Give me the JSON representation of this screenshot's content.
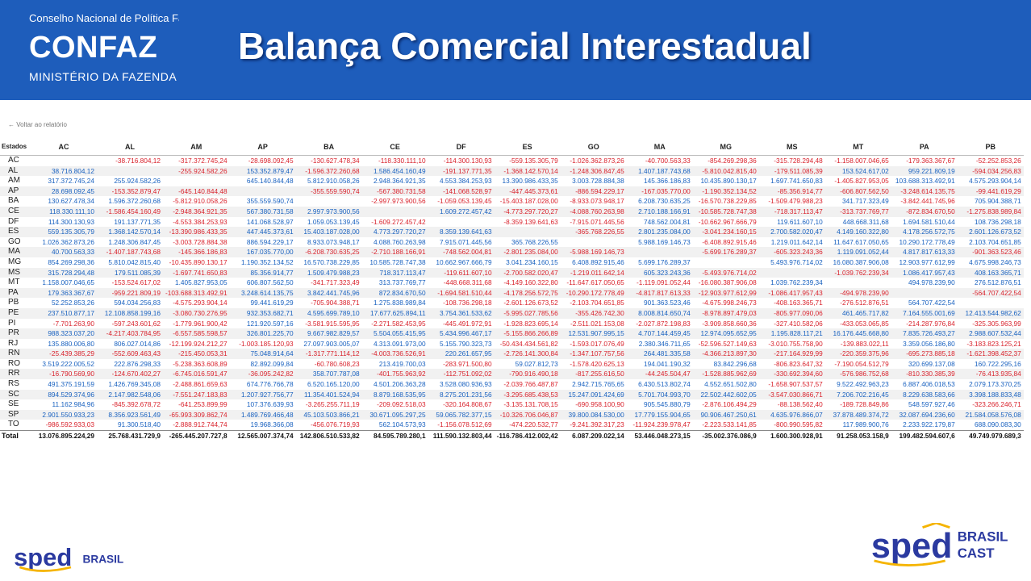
{
  "header": {
    "org_name": "Conselho Nacional de Política Fazendária",
    "logo_text": "CONFAZ",
    "ministry": "MINISTÉRIO DA FAZENDA",
    "title": "Balança Comercial Interestadual"
  },
  "back_link": "Voltar ao relatório",
  "table": {
    "corner_label": "Estados",
    "columns": [
      "AC",
      "AL",
      "AM",
      "AP",
      "BA",
      "CE",
      "DF",
      "ES",
      "GO",
      "MA",
      "MG",
      "MS",
      "MT",
      "PA",
      "PB"
    ],
    "rows": [
      {
        "state": "AC",
        "values": [
          "",
          "-38.716.804,12",
          "-317.372.745,24",
          "-28.698.092,45",
          "-130.627.478,34",
          "-118.330.111,10",
          "-114.300.130,93",
          "-559.135.305,79",
          "-1.026.362.873,26",
          "-40.700.563,33",
          "-854.269.298,36",
          "-315.728.294,48",
          "-1.158.007.046,65",
          "-179.363.367,67",
          "-52.252.853,26"
        ]
      },
      {
        "state": "AL",
        "values": [
          "38.716.804,12",
          "",
          "-255.924.582,26",
          "153.352.879,47",
          "-1.596.372.260,68",
          "1.586.454.160,49",
          "-191.137.771,35",
          "-1.368.142.570,14",
          "-1.248.306.847,45",
          "1.407.187.743,68",
          "-5.810.042.815,40",
          "-179.511.085,39",
          "153.524.617,02",
          "959.221.809,19",
          "-594.034.256,83"
        ]
      },
      {
        "state": "AM",
        "values": [
          "317.372.745,24",
          "255.924.582,26",
          "",
          "645.140.844,48",
          "5.812.910.058,26",
          "2.948.364.921,35",
          "4.553.384.253,93",
          "13.390.986.433,35",
          "3.003.728.884,38",
          "145.366.186,83",
          "10.435.890.130,17",
          "1.697.741.650,83",
          "-1.405.827.953,05",
          "103.688.313.492,91",
          "4.575.293.904,14"
        ]
      },
      {
        "state": "AP",
        "values": [
          "28.698.092,45",
          "-153.352.879,47",
          "-645.140.844,48",
          "",
          "-355.559.590,74",
          "-567.380.731,58",
          "-141.068.528,97",
          "-447.445.373,61",
          "-886.594.229,17",
          "-167.035.770,00",
          "-1.190.352.134,52",
          "-85.356.914,77",
          "-606.807.562,50",
          "-3.248.614.135,75",
          "-99.441.619,29"
        ]
      },
      {
        "state": "BA",
        "values": [
          "130.627.478,34",
          "1.596.372.260,68",
          "-5.812.910.058,26",
          "355.559.590,74",
          "",
          "-2.997.973.900,56",
          "-1.059.053.139,45",
          "-15.403.187.028,00",
          "-8.933.073.948,17",
          "6.208.730.635,25",
          "-16.570.738.229,85",
          "-1.509.479.988,23",
          "341.717.323,49",
          "-3.842.441.745,96",
          "705.904.388,71"
        ]
      },
      {
        "state": "CE",
        "values": [
          "118.330.111,10",
          "-1.586.454.160,49",
          "-2.948.364.921,35",
          "567.380.731,58",
          "2.997.973.900,56",
          "",
          "1.609.272.457,42",
          "-4.773.297.720,27",
          "-4.088.760.263,98",
          "2.710.188.166,91",
          "-10.585.728.747,38",
          "-718.317.113,47",
          "-313.737.769,77",
          "-872.834.670,50",
          "-1.275.838.989,84"
        ]
      },
      {
        "state": "DF",
        "values": [
          "114.300.130,93",
          "191.137.771,35",
          "-4.553.384.253,93",
          "141.068.528,97",
          "1.059.053.139,45",
          "-1.609.272.457,42",
          "",
          "-8.359.139.641,63",
          "-7.915.071.445,56",
          "748.562.004,81",
          "-10.662.967.666,79",
          "119.611.607,10",
          "448.668.311,68",
          "1.694.581.510,44",
          "108.736.298,18"
        ]
      },
      {
        "state": "ES",
        "values": [
          "559.135.305,79",
          "1.368.142.570,14",
          "-13.390.986.433,35",
          "447.445.373,61",
          "15.403.187.028,00",
          "4.773.297.720,27",
          "8.359.139.641,63",
          "",
          "-365.768.226,55",
          "2.801.235.084,00",
          "-3.041.234.160,15",
          "2.700.582.020,47",
          "4.149.160.322,80",
          "4.178.256.572,75",
          "2.601.126.673,52"
        ]
      },
      {
        "state": "GO",
        "values": [
          "1.026.362.873,26",
          "1.248.306.847,45",
          "-3.003.728.884,38",
          "886.594.229,17",
          "8.933.073.948,17",
          "4.088.760.263,98",
          "7.915.071.445,56",
          "365.768.226,55",
          "",
          "5.988.169.146,73",
          "-6.408.892.915,46",
          "1.219.011.642,14",
          "11.647.617.050,65",
          "10.290.172.778,49",
          "2.103.704.651,85"
        ]
      },
      {
        "state": "MA",
        "values": [
          "40.700.563,33",
          "-1.407.187.743,68",
          "-145.366.186,83",
          "167.035.770,00",
          "-6.208.730.635,25",
          "-2.710.188.166,91",
          "-748.562.004,81",
          "-2.801.235.084,00",
          "-5.988.169.146,73",
          "",
          "-5.699.176.289,37",
          "-605.323.243,36",
          "1.119.091.052,44",
          "4.817.817.613,33",
          "-901.363.523,46"
        ]
      },
      {
        "state": "MG",
        "values": [
          "854.269.298,36",
          "5.810.042.815,40",
          "-10.435.890.130,17",
          "1.190.352.134,52",
          "16.570.738.229,85",
          "10.585.728.747,38",
          "10.662.967.666,79",
          "3.041.234.160,15",
          "6.408.892.915,46",
          "5.699.176.289,37",
          "",
          "5.493.976.714,02",
          "16.080.387.906,08",
          "12.903.977.612,99",
          "4.675.998.246,73"
        ]
      },
      {
        "state": "MS",
        "values": [
          "315.728.294,48",
          "179.511.085,39",
          "-1.697.741.650,83",
          "85.356.914,77",
          "1.509.479.988,23",
          "718.317.113,47",
          "-119.611.607,10",
          "-2.700.582.020,47",
          "-1.219.011.642,14",
          "605.323.243,36",
          "-5.493.976.714,02",
          "",
          "-1.039.762.239,34",
          "1.086.417.957,43",
          "408.163.365,71"
        ]
      },
      {
        "state": "MT",
        "values": [
          "1.158.007.046,65",
          "-153.524.617,02",
          "1.405.827.953,05",
          "606.807.562,50",
          "-341.717.323,49",
          "313.737.769,77",
          "-448.668.311,68",
          "-4.149.160.322,80",
          "-11.647.617.050,65",
          "-1.119.091.052,44",
          "-16.080.387.906,08",
          "1.039.762.239,34",
          "",
          "494.978.239,90",
          "276.512.876,51"
        ]
      },
      {
        "state": "PA",
        "values": [
          "179.363.367,67",
          "-959.221.809,19",
          "-103.688.313.492,91",
          "3.248.614.135,75",
          "3.842.441.745,96",
          "872.834.670,50",
          "-1.694.581.510,44",
          "-4.178.256.572,75",
          "-10.290.172.778,49",
          "-4.817.817.613,33",
          "-12.903.977.612,99",
          "-1.086.417.957,43",
          "-494.978.239,90",
          "",
          "-564.707.422,54"
        ]
      },
      {
        "state": "PB",
        "values": [
          "52.252.853,26",
          "594.034.256,83",
          "-4.575.293.904,14",
          "99.441.619,29",
          "-705.904.388,71",
          "1.275.838.989,84",
          "-108.736.298,18",
          "-2.601.126.673,52",
          "-2.103.704.651,85",
          "901.363.523,46",
          "-4.675.998.246,73",
          "-408.163.365,71",
          "-276.512.876,51",
          "564.707.422,54",
          ""
        ]
      },
      {
        "state": "PE",
        "values": [
          "237.510.877,17",
          "12.108.858.199,16",
          "-3.080.730.276,95",
          "932.353.682,71",
          "4.595.699.789,10",
          "17.677.625.894,11",
          "3.754.361.533,62",
          "-5.995.027.785,56",
          "-355.426.742,30",
          "8.008.814.650,74",
          "-8.978.897.479,03",
          "-805.977.090,06",
          "461.465.717,82",
          "7.164.555.001,69",
          "12.413.544.982,62"
        ]
      },
      {
        "state": "PI",
        "values": [
          "-7.701.263,90",
          "-597.243.601,62",
          "-1.779.961.900,42",
          "121.920.597,16",
          "-3.581.915.595,95",
          "-2.271.582.453,95",
          "-445.491.972,91",
          "-1.928.823.695,14",
          "-2.511.021.153,08",
          "-2.027.872.198,83",
          "-3.909.858.660,36",
          "-327.410.582,06",
          "-433.053.065,85",
          "-214.287.976,84",
          "-325.305.963,99"
        ]
      },
      {
        "state": "PR",
        "values": [
          "988.323.037,20",
          "-4.217.403.784,95",
          "-6.557.585.598,57",
          "326.801.225,70",
          "9.667.982.829,57",
          "5.504.055.415,95",
          "5.434.996.467,17",
          "-5.155.866.266,89",
          "12.531.907.995,15",
          "4.707.144.459,45",
          "12.974.095.652,95",
          "1.195.828.117,21",
          "16.176.445.668,80",
          "7.835.726.493,27",
          "2.988.607.532,44"
        ]
      },
      {
        "state": "RJ",
        "values": [
          "135.880.006,80",
          "806.027.014,86",
          "-12.199.924.212,27",
          "-1.003.185.120,93",
          "27.097.903.005,07",
          "4.313.091.973,00",
          "5.155.790.323,73",
          "-50.434.434.561,82",
          "-1.593.017.076,49",
          "2.380.346.711,65",
          "-52.596.527.149,63",
          "-3.010.755.758,90",
          "-139.883.022,11",
          "3.359.056.186,80",
          "-3.183.823.125,21"
        ]
      },
      {
        "state": "RN",
        "values": [
          "-25.439.385,29",
          "-552.609.463,43",
          "-215.450.053,31",
          "75.048.914,64",
          "-1.317.771.114,12",
          "-4.003.736.526,91",
          "220.261.657,95",
          "-2.726.141.300,84",
          "-1.347.107.757,56",
          "264.481.335,58",
          "-4.366.213.897,30",
          "-217.164.929,99",
          "-220.359.375,96",
          "-695.273.885,18",
          "-1.621.398.452,37"
        ]
      },
      {
        "state": "RO",
        "values": [
          "3.519.222.005,52",
          "222.876.298,33",
          "-5.238.363.608,89",
          "82.892.099,84",
          "-60.780.608,23",
          "213.419.700,03",
          "-283.971.500,80",
          "59.027.812,73",
          "-1.578.420.625,13",
          "194.041.190,32",
          "83.842.296,68",
          "-806.823.647,32",
          "-7.190.054.512,79",
          "320.699.137,08",
          "160.722.295,16"
        ]
      },
      {
        "state": "RR",
        "values": [
          "-16.790.569,90",
          "-124.670.402,27",
          "-6.745.016.591,47",
          "-36.095.242,82",
          "358.707.787,08",
          "-401.755.963,92",
          "-112.751.092,02",
          "-790.916.490,18",
          "-817.255.616,50",
          "-44.245.504,47",
          "-1.528.885.962,69",
          "-330.692.394,60",
          "-576.986.752,68",
          "-810.330.385,39",
          "-76.413.935,84"
        ]
      },
      {
        "state": "RS",
        "values": [
          "491.375.191,59",
          "1.426.769.345,08",
          "-2.488.861.659,63",
          "674.776.766,78",
          "6.520.165.120,00",
          "4.501.206.363,28",
          "3.528.080.936,93",
          "-2.039.766.487,87",
          "2.942.715.765,65",
          "6.430.513.802,74",
          "4.552.651.502,80",
          "-1.658.907.537,57",
          "9.522.492.963,23",
          "6.887.406.018,53",
          "2.079.173.370,25"
        ]
      },
      {
        "state": "SC",
        "values": [
          "894.529.374,96",
          "2.147.982.548,06",
          "-7.551.247.183,83",
          "1.207.927.756,77",
          "11.354.401.524,94",
          "8.879.168.535,95",
          "8.275.201.231,56",
          "-3.295.685.438,53",
          "15.247.091.424,69",
          "5.701.704.993,70",
          "22.502.442.602,05",
          "-3.547.030.866,71",
          "7.206.702.216,45",
          "8.229.638.583,66",
          "3.398.188.833,48"
        ]
      },
      {
        "state": "SE",
        "values": [
          "11.162.984,96",
          "-845.392.678,72",
          "-641.253.899,99",
          "107.376.639,93",
          "-3.265.255.711,19",
          "-209.092.518,03",
          "-320.164.808,67",
          "-3.135.131.708,15",
          "-690.958.100,90",
          "905.545.880,79",
          "-2.876.106.494,29",
          "-88.138.562,40",
          "-189.728.849,86",
          "548.597.927,46",
          "-323.266.246,71"
        ]
      },
      {
        "state": "SP",
        "values": [
          "2.901.550.933,23",
          "8.356.923.561,49",
          "-65.993.309.862,74",
          "1.489.769.466,48",
          "45.103.503.866,21",
          "30.671.095.297,25",
          "59.065.782.377,15",
          "-10.326.706.046,87",
          "39.800.084.530,00",
          "17.779.155.904,65",
          "90.906.467.250,61",
          "4.635.976.866,07",
          "37.878.489.374,72",
          "32.087.694.236,60",
          "21.584.058.576,08"
        ]
      },
      {
        "state": "TO",
        "values": [
          "-986.592.933,03",
          "91.300.518,40",
          "-2.888.912.744,74",
          "19.968.366,08",
          "-456.076.719,93",
          "562.104.573,93",
          "-1.156.078.512,69",
          "-474.220.532,77",
          "-9.241.392.317,23",
          "-11.924.239.978,47",
          "-2.223.533.141,85",
          "-800.990.595,82",
          "117.989.900,76",
          "2.233.922.179,87",
          "688.090.083,30"
        ]
      }
    ],
    "total": {
      "state": "Total",
      "values": [
        "13.076.895.224,29",
        "25.768.431.729,9",
        "-265.445.207.727,8",
        "12.565.007.374,74",
        "142.806.510.533,82",
        "84.595.789.280,1",
        "111.590.132.803,44",
        "-116.786.412.002,42",
        "6.087.209.022,14",
        "53.446.048.273,15",
        "-35.002.376.086,9",
        "1.600.300.928,91",
        "91.258.053.158,9",
        "199.482.594.607,6",
        "49.749.979.689,3"
      ]
    }
  },
  "footer": {
    "sped_left": "sped",
    "sped_left_sub": "BRASIL",
    "sped_right": "sped",
    "sped_right_sub1": "BRASIL",
    "sped_right_sub2": "CAST"
  },
  "colors": {
    "header_bg": "#1e5dbb",
    "positive": "#1a62c0",
    "negative": "#d9232d"
  }
}
